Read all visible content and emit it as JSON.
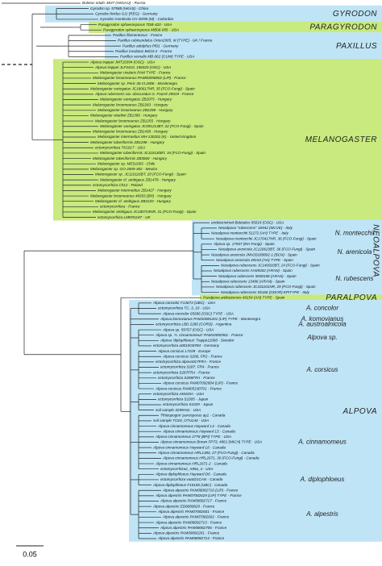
{
  "outgroup": "Boletus edulis 4837 (HMJAU) - Russia",
  "scale_bar": "0.05",
  "clades": [
    {
      "label": "GYRODON",
      "color": "#bfe4f6",
      "groups": [
        {
          "leaves": [
            "Gyrodon sp. 57588 (HKAS) - China",
            "Gyrodon lividus GI1 (REG) - Germany",
            "Gyrodon monticola CH 30/96 (M) - Colombia"
          ]
        }
      ]
    },
    {
      "label": "PARAGYRODON",
      "color": "#c8ea7e",
      "groups": [
        {
          "leaves": [
            "Paragyrodon sphaerosporus TDB-420 - USA",
            "Paragyrodon sphaerosporus MB06-095 - USA"
          ]
        }
      ]
    },
    {
      "label": "PAXILLUS",
      "color": "#bfe4f6",
      "groups": [
        {
          "leaves": [
            "Paxillus filamentosus - France",
            "Paxillus rubicundulus Orton2905, M (TYPE) - UK / France",
            "Paxillus adelphus Pf01 - Germany",
            "Paxillus involutus Bel10.4 - France",
            "Paxillus vernalis MB-062 (CUW) TYPE - USA"
          ]
        }
      ]
    },
    {
      "label": "MELANOGASTER",
      "color": "#c8ea7e",
      "groups": [
        {
          "leaves": [
            "Alpova trappei JMT16394 (OSC) - USA",
            "Alpova trappei JLF4410, 158320 (OSC) - USA",
            "Melanogaster rivularis PAM TYPE - France",
            "Melanogaster broomeanus PAM00090802 (LIP) - France",
            "Melanogaster sp. Peric 30.VI.2006 - Montenegro",
            "Melanogaster variegatus JC180617NR, 35 (FCO-Fungi) - Spain",
            "Alpova rubescens var. obscuratus G. Fourré 29019 - France",
            "Melanogaster variegatus ZB2075 - Hungary",
            "Melanogaster broomeanus ZB2283 - Hungary",
            "Melanogaster broomeanus ZB2298 - Hungary",
            "Melanogaster vitadinii ZB1390 - Hungary",
            "Melanogaster broomeanus ZB1255 - Hungary",
            "Melanogaster variegatus JC091213BT, 32 (FCO-Fungi) - Spain",
            "Melanogaster broomeanus ZB1438 - Hungary",
            "Melanogaster intermedius MH-130202 (K) - United Kingdom",
            "Melanogaster tuberiformis ZB1298 - Hungary",
            "ectomycorrhiza TK1617 - USA",
            "Melanogaster tuberiformis JC110130BT, 34 (FCO-Fungi) - Spain",
            "Melanogaster tuberiformis ZB3060 - Hungary",
            "Melanogaster sp. MES1003 - Chile",
            "Melanogaster sp. GO-2009-302 - Mexico",
            "Melanogaster sp. JC110116BT, 20 (FCO-Fungi) - Spain",
            "Melanogaster cf. ambiguus ZB1478 - Hungary",
            "ectomycorrhiza Ch12 - Poland",
            "Melanogaster intermedius ZB1427 - Hungary",
            "Melanogaster broomeanus 48353 (BP) - Hungary",
            "Melanogaster cf. ambiguus ZB2220 - Hungary",
            "ectomycorrhiza - France",
            "Melanogaster ambiguus JC180719NR, 31 (FCO-Fungi) - Spain",
            "ectomycorrhiza LMKR1187 - UK"
          ]
        }
      ]
    },
    {
      "label": "NEOALPOVA",
      "color": "#bfe4f6",
      "vertical": true,
      "groups": [
        {
          "leaves": [
            "undetermined Boletales 95019 (OSC) - USA"
          ]
        },
        {
          "label": "N. montecchii",
          "leaves": [
            "Neoalpova \"rubescens\" 16942 (MCVE) - Italy",
            "Neoalpova montecchii 51272 (AH) TYPE - Italy",
            "Neoalpova montecchii JC170417NR, 36 (FCO-Fungi) - Spain"
          ]
        },
        {
          "label": "N. arenicola",
          "leaves": [
            "Alpova sp. 17947 (MA-Fungi) - Spain",
            "Neoalpova arenicola JC120623BT, 36 (FCO-Fungi) - Spain",
            "Neoalpova arenicola JMV20180802-1 (BCN) - Spain",
            "Neoalpova arenicola 49153 (AH) TYPE - Spain"
          ]
        },
        {
          "label": "N. rubescens",
          "leaves": [
            "Neoalpova rubescens JC140920BT, 24 (FCO-Fungi) - Spain",
            "Neoalpova rubescens AH39302 (ARAN) - Spain",
            "Neoalpova rubescens 5650168 (ARAN) - Spain",
            "Neoalpova rubescens 13496 (ARAN) - Spain",
            "Neoalpova rubescens JC101101NR, 29 (FCO-Fungi) - Spain",
            "Neoalpova rubescens 55166 (GDOR) EPITYPE - Italy"
          ]
        }
      ]
    },
    {
      "label": "PARALPOVA",
      "color": "#c8ea7e",
      "groups": [
        {
          "leaves": [
            "Paralpova artikutzensis 49154 (AH) TYPE - Spain"
          ]
        }
      ]
    },
    {
      "label": "ALPOVA",
      "color": "#bfe4f6",
      "groups": [
        {
          "label": "A. concolor",
          "leaves": [
            "Alpova concolor F14673 (UBC) - USA",
            "ectomycorrhiza TC_3_10 - USA",
            "Alpova concolor 65696 (OSC) TYPE - USA"
          ]
        },
        {
          "label": "A. komovianus",
          "leaves": [
            "Alpova komovianus PAM10081201 (LIP) TYPE - Montenegro"
          ]
        },
        {
          "label": "A. austroalnicola",
          "leaves": [
            "ectomycorrhiza LBD 2280 (CORD) - Argentina"
          ]
        },
        {
          "label": "Alpova sp.",
          "leaves": [
            "Alpova sp. 59767 (OSC) - USA",
            "Alpova sp. 'A. cinnamomeus' PAM10092901 - France",
            "Alpova 'diplophloeus' Trappe11068 - Sweden",
            "ectomycorrhiza a0010GERM - Germany"
          ]
        },
        {
          "label": "A. corsicus",
          "leaves": [
            "Alpova corsicus L7109 - Europe",
            "Alpova corsicus S286, FR2 - France",
            "ectomycorrhiza alpova017FRA - France",
            "ectomycorrhiza S287, FR4 - France",
            "ectomycorrhiza S287FRA - France",
            "ectomycorrhiza S286FRA - France",
            "Alpova corsicus PAM07092804 (LIP) - France",
            "Alpova corsicus PAM05100701 - France"
          ]
        },
        {
          "leaves": [
            "ectomycorrhiza AM425A - USA",
            "ectomycorrhiza S1005 - Japan",
            "ectomycorrhiza S1029 - Japan",
            "soil sample 3259H11 - USA"
          ]
        },
        {
          "label": "A. cinnamomeus",
          "leaves": [
            "'Rhizopogon' parvisporus ap1 - Canada",
            "soil sample TO18_OTU144 - USA",
            "Alpova cinnamomeus Hayward L3 - Canada",
            "Alpova cinnamomeus Hayward L5 - Canada",
            "Alpova cinnamomeus 2778 (BPI) TYPE - USA",
            "Alpova cinnamomeus Brown FP73, 4961 (MICH) TYPE - USA",
            "Alpova cinnamomeus Hayward L8 - Canada",
            "Alpova cinnamomeus HRL1384, 27 (FCO-Fungi) - Canada",
            "Alpova cinnamomeus HRL2671, 30 (FCO-Fungi) - Canada",
            "Alpova cinnamomeus HRL2671-2 - Canada",
            "ectomycorrhiza2_A85a_4 - USA"
          ]
        },
        {
          "label": "A. diplophloeus",
          "leaves": [
            "Alpova diplophloeus Hayward D6 - Canada",
            "ectomycorrhiza vaa021CAN - Canada",
            "Alpova diplophloeus F15185 (UBC) - Canada"
          ]
        },
        {
          "label": "A. alpestris",
          "leaves": [
            "Alpova alpestris PAM08082716 (LIP) - France",
            "Alpova alpestris PAM07082629 (LIP) TYPE - France",
            "Alpova alpestris PAM08082717 - France",
            "Alpova alpestris ED8080829 - France",
            "Alpova alpestris PAM07082601 - France",
            "Alpova alpestris PAM07082602 - France",
            "Alpova alpestris PAM08082713 - France",
            "Alpova alpestris PAM08082706 - France",
            "Alpova alpestris PAM09082201 - France",
            "Alpova alpestris PAM08082714 - France"
          ]
        }
      ]
    }
  ]
}
